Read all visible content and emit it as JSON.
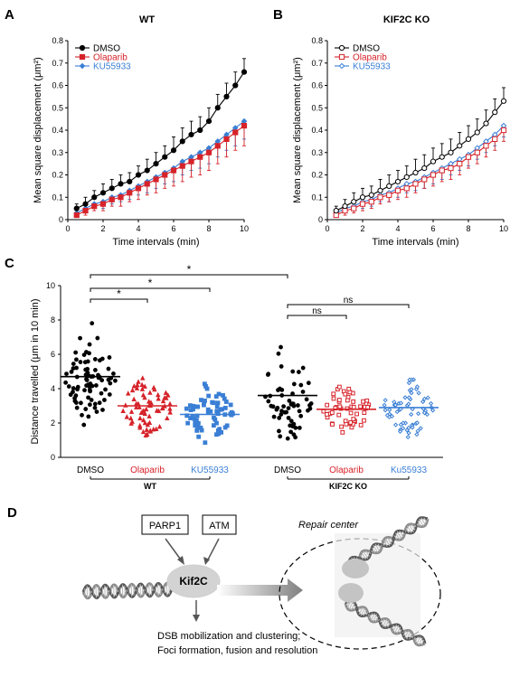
{
  "panel_labels": [
    "A",
    "B",
    "C",
    "D"
  ],
  "chart_data": [
    {
      "panel": "A",
      "type": "line",
      "title": "WT",
      "xlabel": "Time intervals (min)",
      "ylabel": "Mean square displacement (μm²)",
      "xlim": [
        0,
        10
      ],
      "ylim": [
        0,
        0.8
      ],
      "xticks": [
        0,
        2,
        4,
        6,
        8,
        10
      ],
      "yticks": [
        0,
        0.1,
        0.2,
        0.3,
        0.4,
        0.5,
        0.6,
        0.7,
        0.8
      ],
      "legend": "top-left",
      "x": [
        0.5,
        1,
        1.5,
        2,
        2.5,
        3,
        3.5,
        4,
        4.5,
        5,
        5.5,
        6,
        6.5,
        7,
        7.5,
        8,
        8.5,
        9,
        9.5,
        10
      ],
      "series": [
        {
          "name": "DMSO",
          "color": "#000000",
          "marker": "filled-circle",
          "values": [
            0.05,
            0.07,
            0.1,
            0.12,
            0.14,
            0.16,
            0.17,
            0.2,
            0.22,
            0.25,
            0.28,
            0.31,
            0.35,
            0.38,
            0.4,
            0.44,
            0.5,
            0.55,
            0.6,
            0.66
          ],
          "errors": [
            0.02,
            0.03,
            0.03,
            0.04,
            0.04,
            0.04,
            0.04,
            0.04,
            0.05,
            0.05,
            0.05,
            0.06,
            0.06,
            0.06,
            0.06,
            0.06,
            0.06,
            0.06,
            0.06,
            0.06
          ]
        },
        {
          "name": "Olaparib",
          "color": "#d6232a",
          "marker": "filled-square",
          "values": [
            0.02,
            0.04,
            0.06,
            0.07,
            0.09,
            0.1,
            0.12,
            0.14,
            0.16,
            0.18,
            0.2,
            0.22,
            0.24,
            0.26,
            0.28,
            0.3,
            0.33,
            0.36,
            0.39,
            0.42
          ],
          "errors": [
            0.01,
            0.02,
            0.02,
            0.03,
            0.03,
            0.04,
            0.04,
            0.05,
            0.05,
            0.06,
            0.06,
            0.07,
            0.07,
            0.07,
            0.08,
            0.08,
            0.08,
            0.08,
            0.08,
            0.09
          ]
        },
        {
          "name": "KU55933",
          "color": "#3a7fd5",
          "marker": "filled-diamond",
          "values": [
            0.03,
            0.05,
            0.07,
            0.08,
            0.1,
            0.11,
            0.13,
            0.15,
            0.17,
            0.19,
            0.21,
            0.23,
            0.26,
            0.28,
            0.3,
            0.32,
            0.35,
            0.38,
            0.41,
            0.44
          ],
          "errors": [
            0.01,
            0.02,
            0.02,
            0.03,
            0.03,
            0.03,
            0.04,
            0.04,
            0.05,
            0.05,
            0.05,
            0.06,
            0.06,
            0.06,
            0.07,
            0.07,
            0.07,
            0.07,
            0.08,
            0.08
          ]
        }
      ]
    },
    {
      "panel": "B",
      "type": "line",
      "title": "KIF2C KO",
      "xlabel": "Time intervals (min)",
      "ylabel": "Mean square displacement (μm²)",
      "xlim": [
        0,
        10
      ],
      "ylim": [
        0,
        0.8
      ],
      "xticks": [
        0,
        2,
        4,
        6,
        8,
        10
      ],
      "yticks": [
        0,
        0.1,
        0.2,
        0.3,
        0.4,
        0.5,
        0.6,
        0.7,
        0.8
      ],
      "legend": "top-left",
      "x": [
        0.5,
        1,
        1.5,
        2,
        2.5,
        3,
        3.5,
        4,
        4.5,
        5,
        5.5,
        6,
        6.5,
        7,
        7.5,
        8,
        8.5,
        9,
        9.5,
        10
      ],
      "series": [
        {
          "name": "DMSO",
          "color": "#000000",
          "marker": "open-circle",
          "values": [
            0.04,
            0.06,
            0.08,
            0.1,
            0.11,
            0.13,
            0.15,
            0.17,
            0.19,
            0.21,
            0.23,
            0.26,
            0.28,
            0.3,
            0.33,
            0.36,
            0.39,
            0.43,
            0.48,
            0.53
          ],
          "errors": [
            0.02,
            0.03,
            0.04,
            0.04,
            0.04,
            0.05,
            0.05,
            0.05,
            0.05,
            0.06,
            0.06,
            0.06,
            0.06,
            0.06,
            0.06,
            0.06,
            0.06,
            0.06,
            0.06,
            0.06
          ]
        },
        {
          "name": "Olaparib",
          "color": "#d6232a",
          "marker": "open-square",
          "values": [
            0.02,
            0.04,
            0.05,
            0.07,
            0.08,
            0.1,
            0.11,
            0.13,
            0.14,
            0.16,
            0.18,
            0.2,
            0.22,
            0.23,
            0.25,
            0.28,
            0.3,
            0.33,
            0.36,
            0.4
          ],
          "errors": [
            0.01,
            0.02,
            0.02,
            0.03,
            0.03,
            0.03,
            0.03,
            0.04,
            0.04,
            0.04,
            0.04,
            0.05,
            0.05,
            0.05,
            0.05,
            0.05,
            0.05,
            0.05,
            0.05,
            0.05
          ]
        },
        {
          "name": "KU55933",
          "color": "#3a7fd5",
          "marker": "open-diamond",
          "values": [
            0.03,
            0.05,
            0.06,
            0.08,
            0.09,
            0.11,
            0.12,
            0.14,
            0.16,
            0.17,
            0.19,
            0.21,
            0.23,
            0.25,
            0.27,
            0.29,
            0.32,
            0.35,
            0.38,
            0.42
          ],
          "errors": [
            0.01,
            0.02,
            0.02,
            0.03,
            0.03,
            0.03,
            0.04,
            0.04,
            0.04,
            0.04,
            0.05,
            0.05,
            0.05,
            0.05,
            0.05,
            0.05,
            0.05,
            0.05,
            0.05,
            0.05
          ]
        }
      ]
    },
    {
      "panel": "C",
      "type": "scatter",
      "ylabel": "Distance travelled (μm in 10 min)",
      "ylim": [
        0,
        10
      ],
      "yticks": [
        0,
        2,
        4,
        6,
        8,
        10
      ],
      "categories": [
        "DMSO",
        "Olaparib",
        "KU55933",
        "DMSO",
        "Olaparib",
        "Ku55933"
      ],
      "category_colors": [
        "#000000",
        "#d6232a",
        "#3a7fd5",
        "#000000",
        "#d6232a",
        "#3a7fd5"
      ],
      "groups": [
        {
          "label": "WT",
          "categories": [
            0,
            1,
            2
          ]
        },
        {
          "label": "KIF2C KO",
          "categories": [
            3,
            4,
            5
          ]
        }
      ],
      "series": [
        {
          "category": "DMSO",
          "group": "WT",
          "marker": "filled-circle",
          "mean": 4.7,
          "n": 80,
          "min": 1.3,
          "max": 8.6
        },
        {
          "category": "Olaparib",
          "group": "WT",
          "marker": "filled-triangle",
          "mean": 3.0,
          "n": 70,
          "min": 1.2,
          "max": 5.9
        },
        {
          "category": "KU55933",
          "group": "WT",
          "marker": "filled-square",
          "mean": 2.5,
          "n": 65,
          "min": 0.8,
          "max": 5.2
        },
        {
          "category": "DMSO",
          "group": "KIF2C KO",
          "marker": "filled-circle",
          "mean": 3.6,
          "n": 60,
          "min": 0.9,
          "max": 8.3
        },
        {
          "category": "Olaparib",
          "group": "KIF2C KO",
          "marker": "open-square",
          "mean": 2.8,
          "n": 55,
          "min": 1.0,
          "max": 5.0
        },
        {
          "category": "Ku55933",
          "group": "KIF2C KO",
          "marker": "open-diamond",
          "mean": 2.9,
          "n": 65,
          "min": 0.8,
          "max": 5.6
        }
      ],
      "comparisons": [
        {
          "from": 0,
          "to": 1,
          "label": "*"
        },
        {
          "from": 0,
          "to": 2,
          "label": "*"
        },
        {
          "from": 0,
          "to": 3,
          "label": "*"
        },
        {
          "from": 3,
          "to": 4,
          "label": "ns"
        },
        {
          "from": 3,
          "to": 5,
          "label": "ns"
        }
      ]
    }
  ],
  "diagram": {
    "boxes": [
      "PARP1",
      "ATM"
    ],
    "center_label": "Kif2C",
    "repair_label": "Repair center",
    "outcome_lines": [
      "DSB mobilization and clustering;",
      "Foci formation, fusion and resolution"
    ]
  },
  "colors": {
    "black": "#000000",
    "red": "#d6232a",
    "blue": "#3a7fd5",
    "grey": "#808080"
  }
}
